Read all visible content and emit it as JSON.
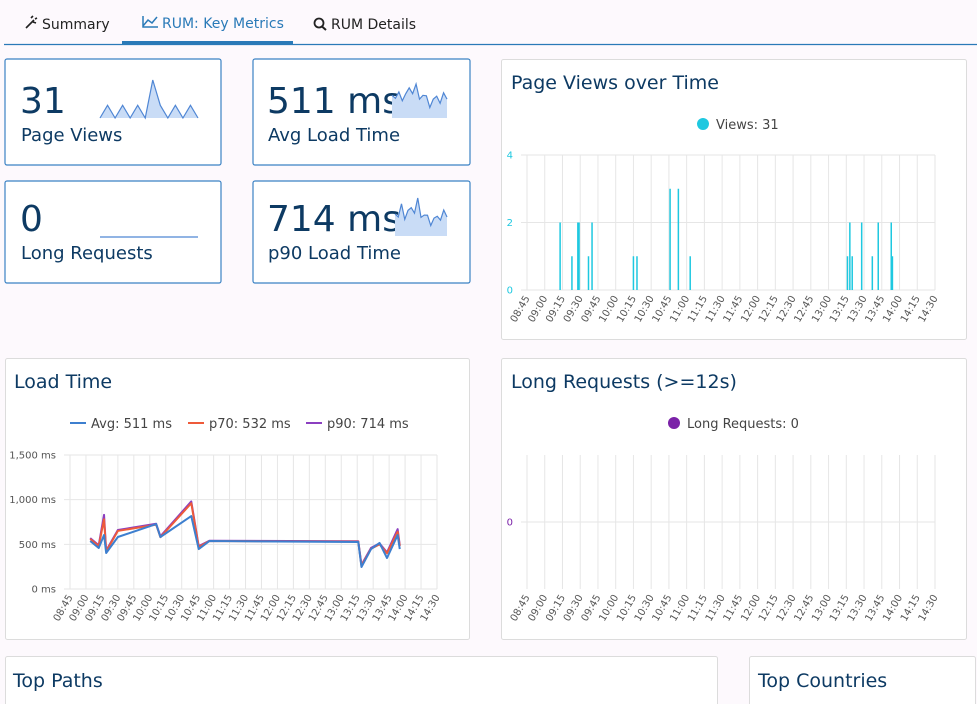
{
  "tabs": [
    "Summary",
    "RUM: Key Metrics",
    "RUM Details"
  ],
  "tiles": [
    {
      "value": "31",
      "label": "Page Views",
      "sparkline": [
        0,
        1,
        0,
        1,
        0,
        1,
        0,
        3,
        1,
        0,
        1,
        0,
        1,
        0
      ]
    },
    {
      "value": "511 ms",
      "label": "Avg Load Time",
      "sparkline": [
        540,
        470,
        620,
        410,
        580,
        720,
        580,
        810,
        450,
        540,
        530,
        250,
        450,
        520,
        350,
        600,
        450
      ]
    },
    {
      "value": "0",
      "label": "Long Requests",
      "sparkline": [
        0,
        0,
        0,
        0,
        0,
        0,
        0,
        0,
        0,
        0
      ]
    },
    {
      "value": "714 ms",
      "label": "p90 Load Time",
      "sparkline": [
        570,
        490,
        830,
        430,
        660,
        730,
        590,
        980,
        480,
        540,
        535,
        270,
        460,
        510,
        410,
        670,
        490
      ]
    }
  ],
  "panels": [
    "Top Paths",
    "Top Countries"
  ],
  "chart_data": [
    {
      "type": "bar",
      "title": "Page Views over Time",
      "x": [
        "09:13",
        "09:23",
        "09:28",
        "09:29",
        "09:37",
        "09:40",
        "10:15",
        "10:18",
        "10:46",
        "10:53",
        "11:03",
        "13:16",
        "13:18",
        "13:20",
        "13:28",
        "13:37",
        "13:42",
        "13:53",
        "13:54"
      ],
      "series": [
        {
          "name": "Views: 31",
          "color": "#1ec8e0",
          "values": [
            2,
            1,
            2,
            2,
            1,
            2,
            1,
            1,
            3,
            3,
            1,
            1,
            2,
            1,
            2,
            1,
            2,
            2,
            1
          ]
        }
      ],
      "xlim": [
        "08:45",
        "14:30"
      ],
      "xticks": [
        "08:45",
        "09:00",
        "09:15",
        "09:30",
        "09:45",
        "10:00",
        "10:15",
        "10:30",
        "10:45",
        "11:00",
        "11:15",
        "11:30",
        "11:45",
        "12:00",
        "12:15",
        "12:30",
        "12:45",
        "13:00",
        "13:15",
        "13:30",
        "13:45",
        "14:00",
        "14:15",
        "14:30"
      ],
      "ylim": [
        0,
        4
      ],
      "yticks": [
        0,
        2,
        4
      ],
      "ytick_color": "#1ec8e0",
      "grid": true,
      "legend": "top"
    },
    {
      "type": "line",
      "title": "Load Time",
      "x": [
        "09:04",
        "09:12",
        "09:17",
        "09:19",
        "09:30",
        "10:06",
        "10:10",
        "10:39",
        "10:46",
        "10:56",
        "13:16",
        "13:19",
        "13:28",
        "13:36",
        "13:43",
        "13:53",
        "13:55"
      ],
      "series": [
        {
          "name": "Avg: 511 ms",
          "color": "#3d7fcf",
          "values": [
            537,
            459,
            604,
            403,
            582,
            727,
            582,
            816,
            447,
            537,
            526,
            246,
            447,
            515,
            347,
            604,
            447
          ]
        },
        {
          "name": "p70: 532 ms",
          "color": "#ee5a3a",
          "values": [
            560,
            480,
            780,
            420,
            650,
            720,
            580,
            960,
            470,
            537,
            530,
            260,
            450,
            500,
            400,
            640,
            480
          ]
        },
        {
          "name": "p90: 714 ms",
          "color": "#8b3fc0",
          "values": [
            570,
            490,
            830,
            430,
            660,
            730,
            590,
            980,
            480,
            540,
            535,
            270,
            460,
            510,
            410,
            670,
            490
          ]
        }
      ],
      "xlim": [
        "08:45",
        "14:30"
      ],
      "xticks": [
        "08:45",
        "09:00",
        "09:15",
        "09:30",
        "09:45",
        "10:00",
        "10:15",
        "10:30",
        "10:45",
        "11:00",
        "11:15",
        "11:30",
        "11:45",
        "12:00",
        "12:15",
        "12:30",
        "12:45",
        "13:00",
        "13:15",
        "13:30",
        "13:45",
        "14:00",
        "14:15",
        "14:30"
      ],
      "ylim": [
        0,
        1500
      ],
      "yticks": [
        {
          "value": 0,
          "label": "0 ms"
        },
        {
          "value": 500,
          "label": "500 ms"
        },
        {
          "value": 1000,
          "label": "1,000 ms"
        },
        {
          "value": 1500,
          "label": "1,500 ms"
        }
      ],
      "ytick_color": "#555555",
      "grid": true,
      "legend": "top"
    },
    {
      "type": "bar",
      "title": "Long Requests (>=12s)",
      "x": [],
      "series": [
        {
          "name": "Long Requests: 0",
          "color": "#7b22a8",
          "values": []
        }
      ],
      "xlim": [
        "08:45",
        "14:30"
      ],
      "xticks": [
        "08:45",
        "09:00",
        "09:15",
        "09:30",
        "09:45",
        "10:00",
        "10:15",
        "10:30",
        "10:45",
        "11:00",
        "11:15",
        "11:30",
        "11:45",
        "12:00",
        "12:15",
        "12:30",
        "12:45",
        "13:00",
        "13:15",
        "13:30",
        "13:45",
        "14:00",
        "14:15",
        "14:30"
      ],
      "ylim": [
        -1,
        1
      ],
      "yticks": [
        0
      ],
      "ytick_color": "#7b22a8",
      "grid": true,
      "legend": "top"
    }
  ]
}
